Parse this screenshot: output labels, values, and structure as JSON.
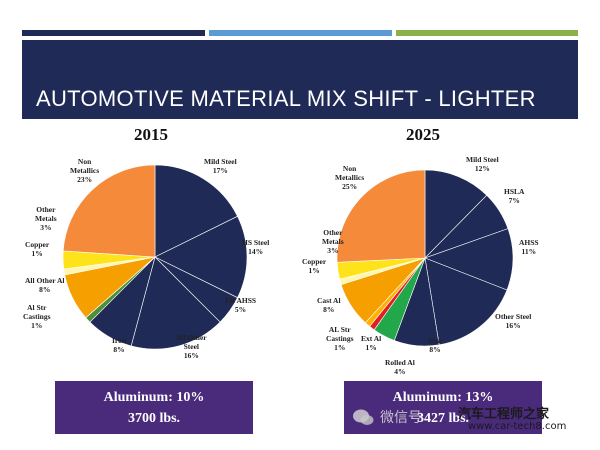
{
  "slide": {
    "title": "AUTOMOTIVE MATERIAL MIX SHIFT - LIGHTER",
    "accent_bar_colors": [
      "#1f2a56",
      "#5a9bd4",
      "#8db04a"
    ],
    "header_color": "#1f2a56"
  },
  "chart_data": [
    {
      "type": "pie",
      "title": "2015",
      "slices": [
        {
          "name": "Mild Steel",
          "value": 17,
          "label": "17%",
          "color": "#1f2a56"
        },
        {
          "name": "HS Steel",
          "value": 14,
          "label": "14%",
          "color": "#1f2a56"
        },
        {
          "name": "FR AHSS",
          "value": 5,
          "label": "5%",
          "color": "#1f2a56"
        },
        {
          "name": "All Other Steel",
          "value": 16,
          "label": "16%",
          "color": "#1f2a56"
        },
        {
          "name": "Iron",
          "value": 8,
          "label": "8%",
          "color": "#1f2a56"
        },
        {
          "name": "Al Str Castings",
          "value": 1,
          "label": "1%",
          "color": "#4f8f3a"
        },
        {
          "name": "All Other Al",
          "value": 8,
          "label": "8%",
          "color": "#f5a000"
        },
        {
          "name": "Copper",
          "value": 1,
          "label": "1%",
          "color": "#fff6b0"
        },
        {
          "name": "Other Metals",
          "value": 3,
          "label": "3%",
          "color": "#ffe31a"
        },
        {
          "name": "Non Metallics",
          "value": 23,
          "label": "23%",
          "color": "#f58a3a"
        }
      ],
      "labels": {
        "mild": {
          "l1": "Mild Steel",
          "l2": "17%"
        },
        "hs": {
          "l1": "HS  Steel",
          "l2": "14%"
        },
        "fr": {
          "l1": "FR AHSS",
          "l2": "5%"
        },
        "allsteel": {
          "l1": "All Other",
          "l2": "Steel",
          "l3": "16%"
        },
        "iron": {
          "l1": "Iron",
          "l2": "8%"
        },
        "alstr": {
          "l1": "Al Str",
          "l2": "Castings",
          "l3": "1%"
        },
        "allal": {
          "l1": "All Other Al",
          "l2": "8%"
        },
        "copper": {
          "l1": "Copper",
          "l2": "1%"
        },
        "othermet": {
          "l1": "Other",
          "l2": "Metals",
          "l3": "3%"
        },
        "nonmet": {
          "l1": "Non",
          "l2": "Metallics",
          "l3": "23%"
        }
      },
      "summary": {
        "line1": "Aluminum: 10%",
        "line2": "3700 lbs."
      }
    },
    {
      "type": "pie",
      "title": "2025",
      "slices": [
        {
          "name": "Mild Steel",
          "value": 12,
          "label": "12%",
          "color": "#1f2a56"
        },
        {
          "name": "HSLA",
          "value": 7,
          "label": "7%",
          "color": "#1f2a56"
        },
        {
          "name": "AHSS",
          "value": 11,
          "label": "11%",
          "color": "#1f2a56"
        },
        {
          "name": "Other Steel",
          "value": 16,
          "label": "16%",
          "color": "#1f2a56"
        },
        {
          "name": "Iron",
          "value": 8,
          "label": "8%",
          "color": "#1f2a56"
        },
        {
          "name": "Rolled Al",
          "value": 4,
          "label": "4%",
          "color": "#22a84a"
        },
        {
          "name": "Ext Al",
          "value": 1,
          "label": "1%",
          "color": "#e02020"
        },
        {
          "name": "AL Str Castings",
          "value": 1,
          "label": "1%",
          "color": "#ffb000"
        },
        {
          "name": "Cast Al",
          "value": 8,
          "label": "8%",
          "color": "#f5a000"
        },
        {
          "name": "Copper",
          "value": 1,
          "label": "1%",
          "color": "#fff6b0"
        },
        {
          "name": "Other Metals",
          "value": 3,
          "label": "3%",
          "color": "#ffe31a"
        },
        {
          "name": "Non Metallics",
          "value": 25,
          "label": "25%",
          "color": "#f58a3a"
        }
      ],
      "labels": {
        "mild": {
          "l1": "Mild Steel",
          "l2": "12%"
        },
        "hsla": {
          "l1": "HSLA",
          "l2": "7%"
        },
        "ahss": {
          "l1": "AHSS",
          "l2": "11%"
        },
        "othersteel": {
          "l1": "Other Steel",
          "l2": "16%"
        },
        "iron": {
          "l1": "Iron",
          "l2": "8%"
        },
        "rolled": {
          "l1": "Rolled Al",
          "l2": "4%"
        },
        "ext": {
          "l1": "Ext Al",
          "l2": "1%"
        },
        "alstr": {
          "l1": "AL Str",
          "l2": "Castings",
          "l3": "1%"
        },
        "cast": {
          "l1": "Cast Al",
          "l2": "8%"
        },
        "copper": {
          "l1": "Copper",
          "l2": "1%"
        },
        "othermet": {
          "l1": "Other",
          "l2": "Metals",
          "l3": "3%"
        },
        "nonmet": {
          "l1": "Non",
          "l2": "Metallics",
          "l3": "25%"
        }
      },
      "summary": {
        "line1": "Aluminum: 13%",
        "line2": "3427 lbs."
      }
    }
  ],
  "watermark": {
    "left_text": "微信号",
    "brand_text": "汽车工程师之家",
    "url_text": "www.car-tech8.com"
  }
}
